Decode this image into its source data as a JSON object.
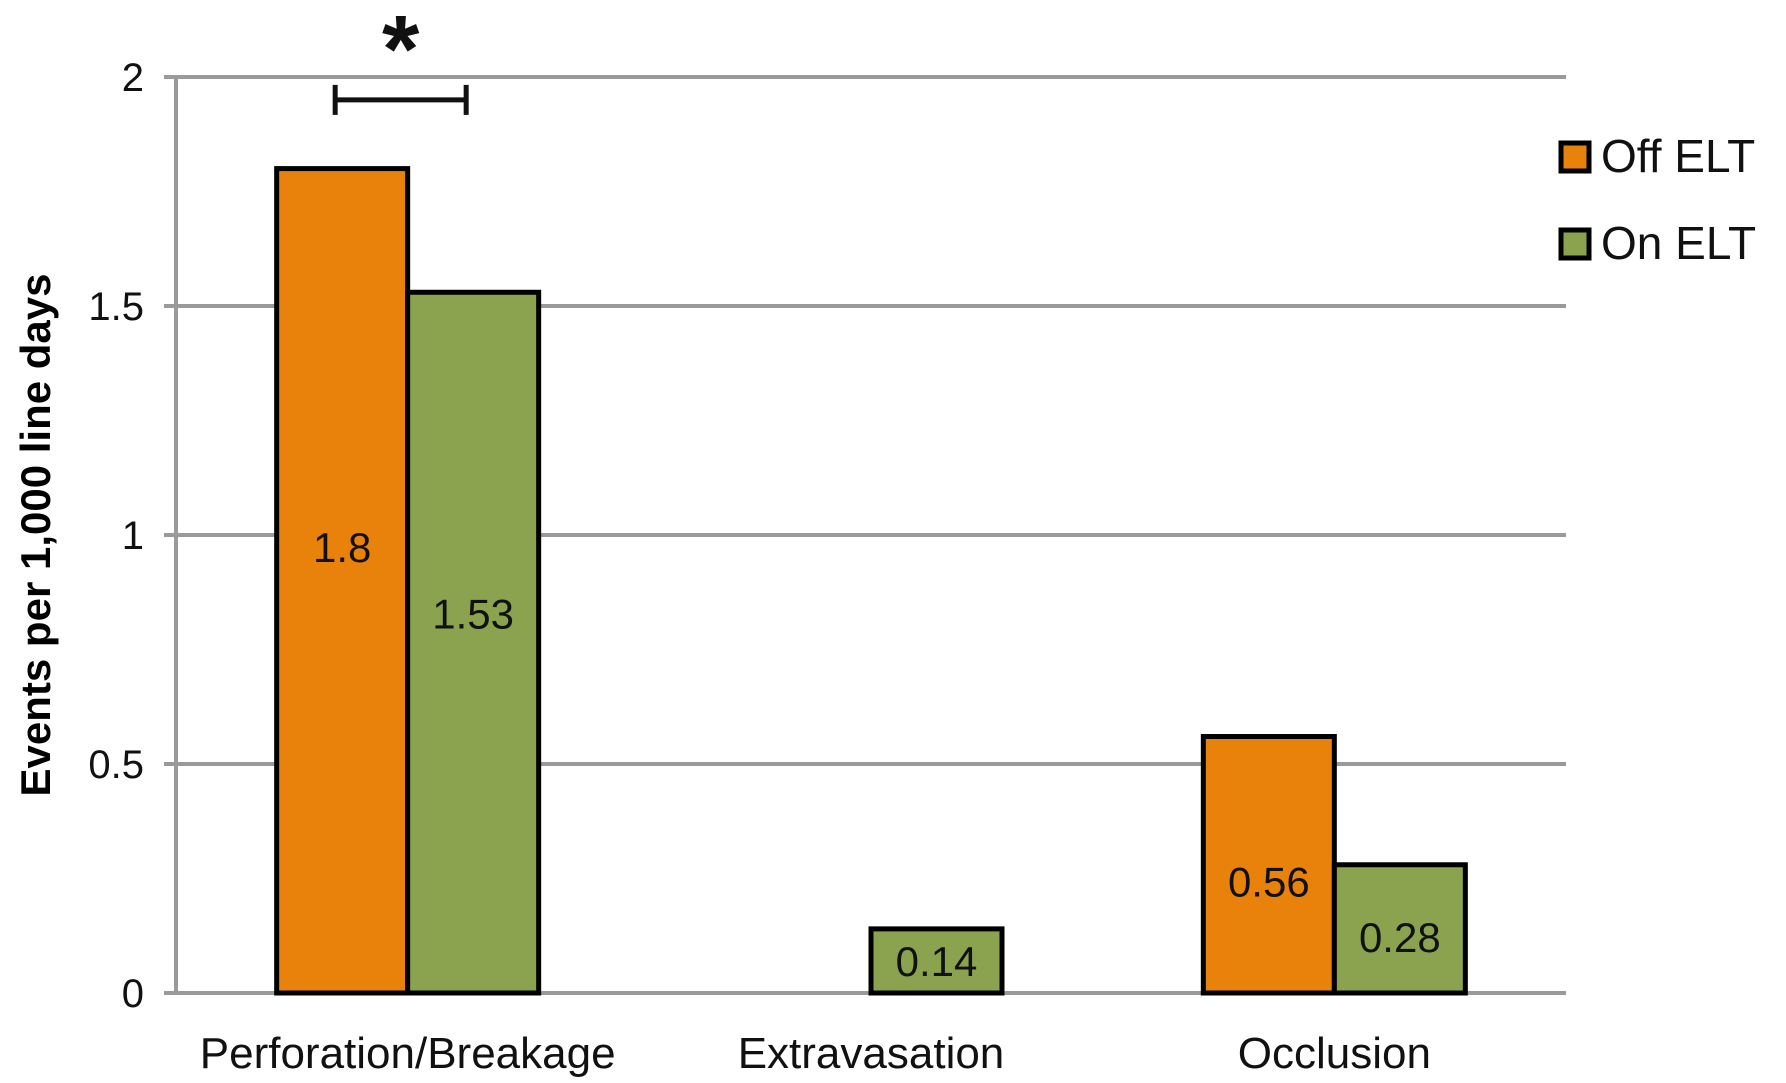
{
  "chart_data": {
    "type": "bar",
    "title": "",
    "xlabel": "",
    "ylabel": "Events per 1,000 line days",
    "ylim": [
      0,
      2
    ],
    "yticks": [
      "0",
      "0.5",
      "1",
      "1.5",
      "2"
    ],
    "grid": true,
    "legend_position": "right",
    "categories": [
      "Perforation/Breakage",
      "Extravasation",
      "Occlusion"
    ],
    "series": [
      {
        "name": "Off ELT",
        "color": "#E8820A",
        "values": [
          1.8,
          0,
          0.56
        ],
        "labels": [
          "1.8",
          "",
          "0.56"
        ]
      },
      {
        "name": "On ELT",
        "color": "#8BA34E",
        "values": [
          1.53,
          0.14,
          0.28
        ],
        "labels": [
          "1.53",
          "0.14",
          "0.28"
        ]
      }
    ],
    "annotation": {
      "text": "*",
      "category": "Perforation/Breakage",
      "bracket_value": 1.95,
      "between_series": [
        "Off ELT",
        "On ELT"
      ]
    }
  }
}
